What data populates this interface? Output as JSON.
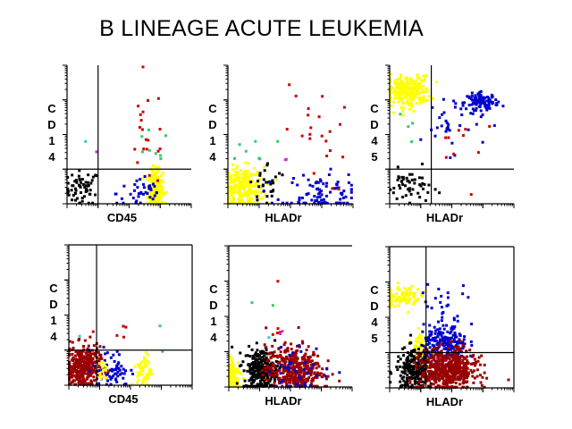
{
  "title": "B LINEAGE ACUTE LEUKEMIA",
  "colors": {
    "yellow": "#ffff00",
    "blue": "#0000cc",
    "red": "#cc0000",
    "darkred": "#990000",
    "black": "#000000",
    "green": "#33cc66",
    "cyan": "#33cccc",
    "magenta": "#cc33cc"
  },
  "chart_data": [
    {
      "type": "scatter",
      "xlabel": "CD45",
      "ylabel": "CD14",
      "xlim": [
        0,
        4
      ],
      "ylim": [
        0,
        4
      ],
      "scale": "log-decades",
      "quadrant": [
        1.0,
        1.0
      ],
      "frame": "none",
      "clusters": [
        {
          "color": "black",
          "n": 60,
          "cx": 0.5,
          "cy": 0.45,
          "sx": 0.28,
          "sy": 0.25
        },
        {
          "color": "yellow",
          "n": 260,
          "cx": 2.85,
          "cy": 0.4,
          "sx": 0.12,
          "sy": 0.28
        },
        {
          "color": "blue",
          "n": 40,
          "cx": 2.4,
          "cy": 0.3,
          "sx": 0.4,
          "sy": 0.25
        },
        {
          "color": "red",
          "n": 20,
          "cx": 2.6,
          "cy": 2.0,
          "sx": 0.35,
          "sy": 0.8
        },
        {
          "color": "green",
          "n": 8,
          "cx": 2.7,
          "cy": 1.5,
          "sx": 0.3,
          "sy": 0.3
        },
        {
          "color": "cyan",
          "n": 1,
          "cx": 0.6,
          "cy": 1.8,
          "sx": 0,
          "sy": 0
        },
        {
          "color": "magenta",
          "n": 1,
          "cx": 0.95,
          "cy": 1.5,
          "sx": 0,
          "sy": 0
        }
      ]
    },
    {
      "type": "scatter",
      "xlabel": "HLADr",
      "ylabel": "CD14",
      "xlim": [
        0,
        4
      ],
      "ylim": [
        0,
        4
      ],
      "scale": "log-decades",
      "quadrant": null,
      "frame": "none",
      "clusters": [
        {
          "color": "yellow",
          "n": 260,
          "cx": 0.45,
          "cy": 0.45,
          "sx": 0.35,
          "sy": 0.3
        },
        {
          "color": "black",
          "n": 30,
          "cx": 1.3,
          "cy": 0.6,
          "sx": 0.3,
          "sy": 0.3
        },
        {
          "color": "blue",
          "n": 90,
          "cx": 2.9,
          "cy": 0.3,
          "sx": 0.6,
          "sy": 0.3
        },
        {
          "color": "red",
          "n": 22,
          "cx": 2.8,
          "cy": 1.9,
          "sx": 0.5,
          "sy": 0.8
        },
        {
          "color": "green",
          "n": 7,
          "cx": 0.7,
          "cy": 1.6,
          "sx": 0.4,
          "sy": 0.2
        },
        {
          "color": "magenta",
          "n": 2,
          "cx": 1.6,
          "cy": 1.2,
          "sx": 0.2,
          "sy": 0.1
        }
      ]
    },
    {
      "type": "scatter",
      "xlabel": "HLADr",
      "ylabel": "CD45",
      "xlim": [
        0,
        4
      ],
      "ylim": [
        0,
        4
      ],
      "scale": "log-decades",
      "quadrant": [
        1.34,
        1.0
      ],
      "frame": "none",
      "clusters": [
        {
          "color": "yellow",
          "n": 260,
          "cx": 0.6,
          "cy": 3.25,
          "sx": 0.35,
          "sy": 0.22
        },
        {
          "color": "blue",
          "n": 90,
          "cx": 3.0,
          "cy": 2.95,
          "sx": 0.25,
          "sy": 0.12
        },
        {
          "color": "blue",
          "n": 40,
          "cx": 2.0,
          "cy": 2.4,
          "sx": 0.5,
          "sy": 0.45
        },
        {
          "color": "black",
          "n": 50,
          "cx": 0.65,
          "cy": 0.5,
          "sx": 0.35,
          "sy": 0.25
        },
        {
          "color": "red",
          "n": 10,
          "cx": 2.4,
          "cy": 2.0,
          "sx": 0.6,
          "sy": 0.7
        },
        {
          "color": "green",
          "n": 4,
          "cx": 0.8,
          "cy": 2.5,
          "sx": 0.4,
          "sy": 0.5
        }
      ]
    },
    {
      "type": "scatter",
      "xlabel": "CD45",
      "ylabel": "CD14",
      "xlim": [
        0,
        4
      ],
      "ylim": [
        0,
        4
      ],
      "scale": "log-decades",
      "quadrant": [
        0.9,
        1.0
      ],
      "frame": "box",
      "clusters": [
        {
          "color": "darkred",
          "n": 320,
          "cx": 0.45,
          "cy": 0.5,
          "sx": 0.28,
          "sy": 0.3
        },
        {
          "color": "blue",
          "n": 60,
          "cx": 1.4,
          "cy": 0.45,
          "sx": 0.3,
          "sy": 0.3
        },
        {
          "color": "yellow",
          "n": 60,
          "cx": 2.45,
          "cy": 0.4,
          "sx": 0.12,
          "sy": 0.25
        },
        {
          "color": "yellow",
          "n": 15,
          "cx": 1.1,
          "cy": 0.4,
          "sx": 0.1,
          "sy": 0.2
        },
        {
          "color": "red",
          "n": 5,
          "cx": 1.4,
          "cy": 1.7,
          "sx": 0.6,
          "sy": 0.5
        },
        {
          "color": "green",
          "n": 2,
          "cx": 2.7,
          "cy": 2.1,
          "sx": 0.3,
          "sy": 0.6
        },
        {
          "color": "cyan",
          "n": 1,
          "cx": 0.35,
          "cy": 1.4,
          "sx": 0,
          "sy": 0
        }
      ]
    },
    {
      "type": "scatter",
      "xlabel": "HLADr",
      "ylabel": "CD14",
      "xlim": [
        0,
        4
      ],
      "ylim": [
        0,
        4
      ],
      "scale": "log-decades",
      "quadrant": null,
      "frame": "top",
      "clusters": [
        {
          "color": "yellow",
          "n": 80,
          "cx": 0.15,
          "cy": 0.3,
          "sx": 0.15,
          "sy": 0.3
        },
        {
          "color": "black",
          "n": 260,
          "cx": 1.05,
          "cy": 0.5,
          "sx": 0.28,
          "sy": 0.3
        },
        {
          "color": "darkred",
          "n": 380,
          "cx": 2.1,
          "cy": 0.5,
          "sx": 0.45,
          "sy": 0.33
        },
        {
          "color": "blue",
          "n": 40,
          "cx": 2.3,
          "cy": 0.5,
          "sx": 0.5,
          "sy": 0.35
        },
        {
          "color": "red",
          "n": 6,
          "cx": 1.7,
          "cy": 1.7,
          "sx": 0.2,
          "sy": 0.6
        },
        {
          "color": "green",
          "n": 2,
          "cx": 1.3,
          "cy": 1.9,
          "sx": 0.5,
          "sy": 0.4
        },
        {
          "color": "cyan",
          "n": 1,
          "cx": 1.3,
          "cy": 1.4,
          "sx": 0,
          "sy": 0
        },
        {
          "color": "magenta",
          "n": 2,
          "cx": 1.7,
          "cy": 1.6,
          "sx": 0.05,
          "sy": 0.1
        }
      ]
    },
    {
      "type": "scatter",
      "xlabel": "HLADr",
      "ylabel": "CD45",
      "xlim": [
        0,
        4
      ],
      "ylim": [
        0,
        4
      ],
      "scale": "log-decades",
      "quadrant": [
        1.17,
        1.0
      ],
      "frame": "box",
      "clusters": [
        {
          "color": "yellow",
          "n": 90,
          "cx": 0.4,
          "cy": 2.6,
          "sx": 0.3,
          "sy": 0.15
        },
        {
          "color": "yellow",
          "n": 60,
          "cx": 1.0,
          "cy": 1.15,
          "sx": 0.15,
          "sy": 0.3
        },
        {
          "color": "blue",
          "n": 200,
          "cx": 1.8,
          "cy": 1.25,
          "sx": 0.35,
          "sy": 0.25
        },
        {
          "color": "blue",
          "n": 25,
          "cx": 1.9,
          "cy": 2.3,
          "sx": 0.5,
          "sy": 0.4
        },
        {
          "color": "black",
          "n": 220,
          "cx": 0.8,
          "cy": 0.5,
          "sx": 0.3,
          "sy": 0.3
        },
        {
          "color": "darkred",
          "n": 520,
          "cx": 1.9,
          "cy": 0.5,
          "sx": 0.45,
          "sy": 0.3
        }
      ]
    }
  ]
}
